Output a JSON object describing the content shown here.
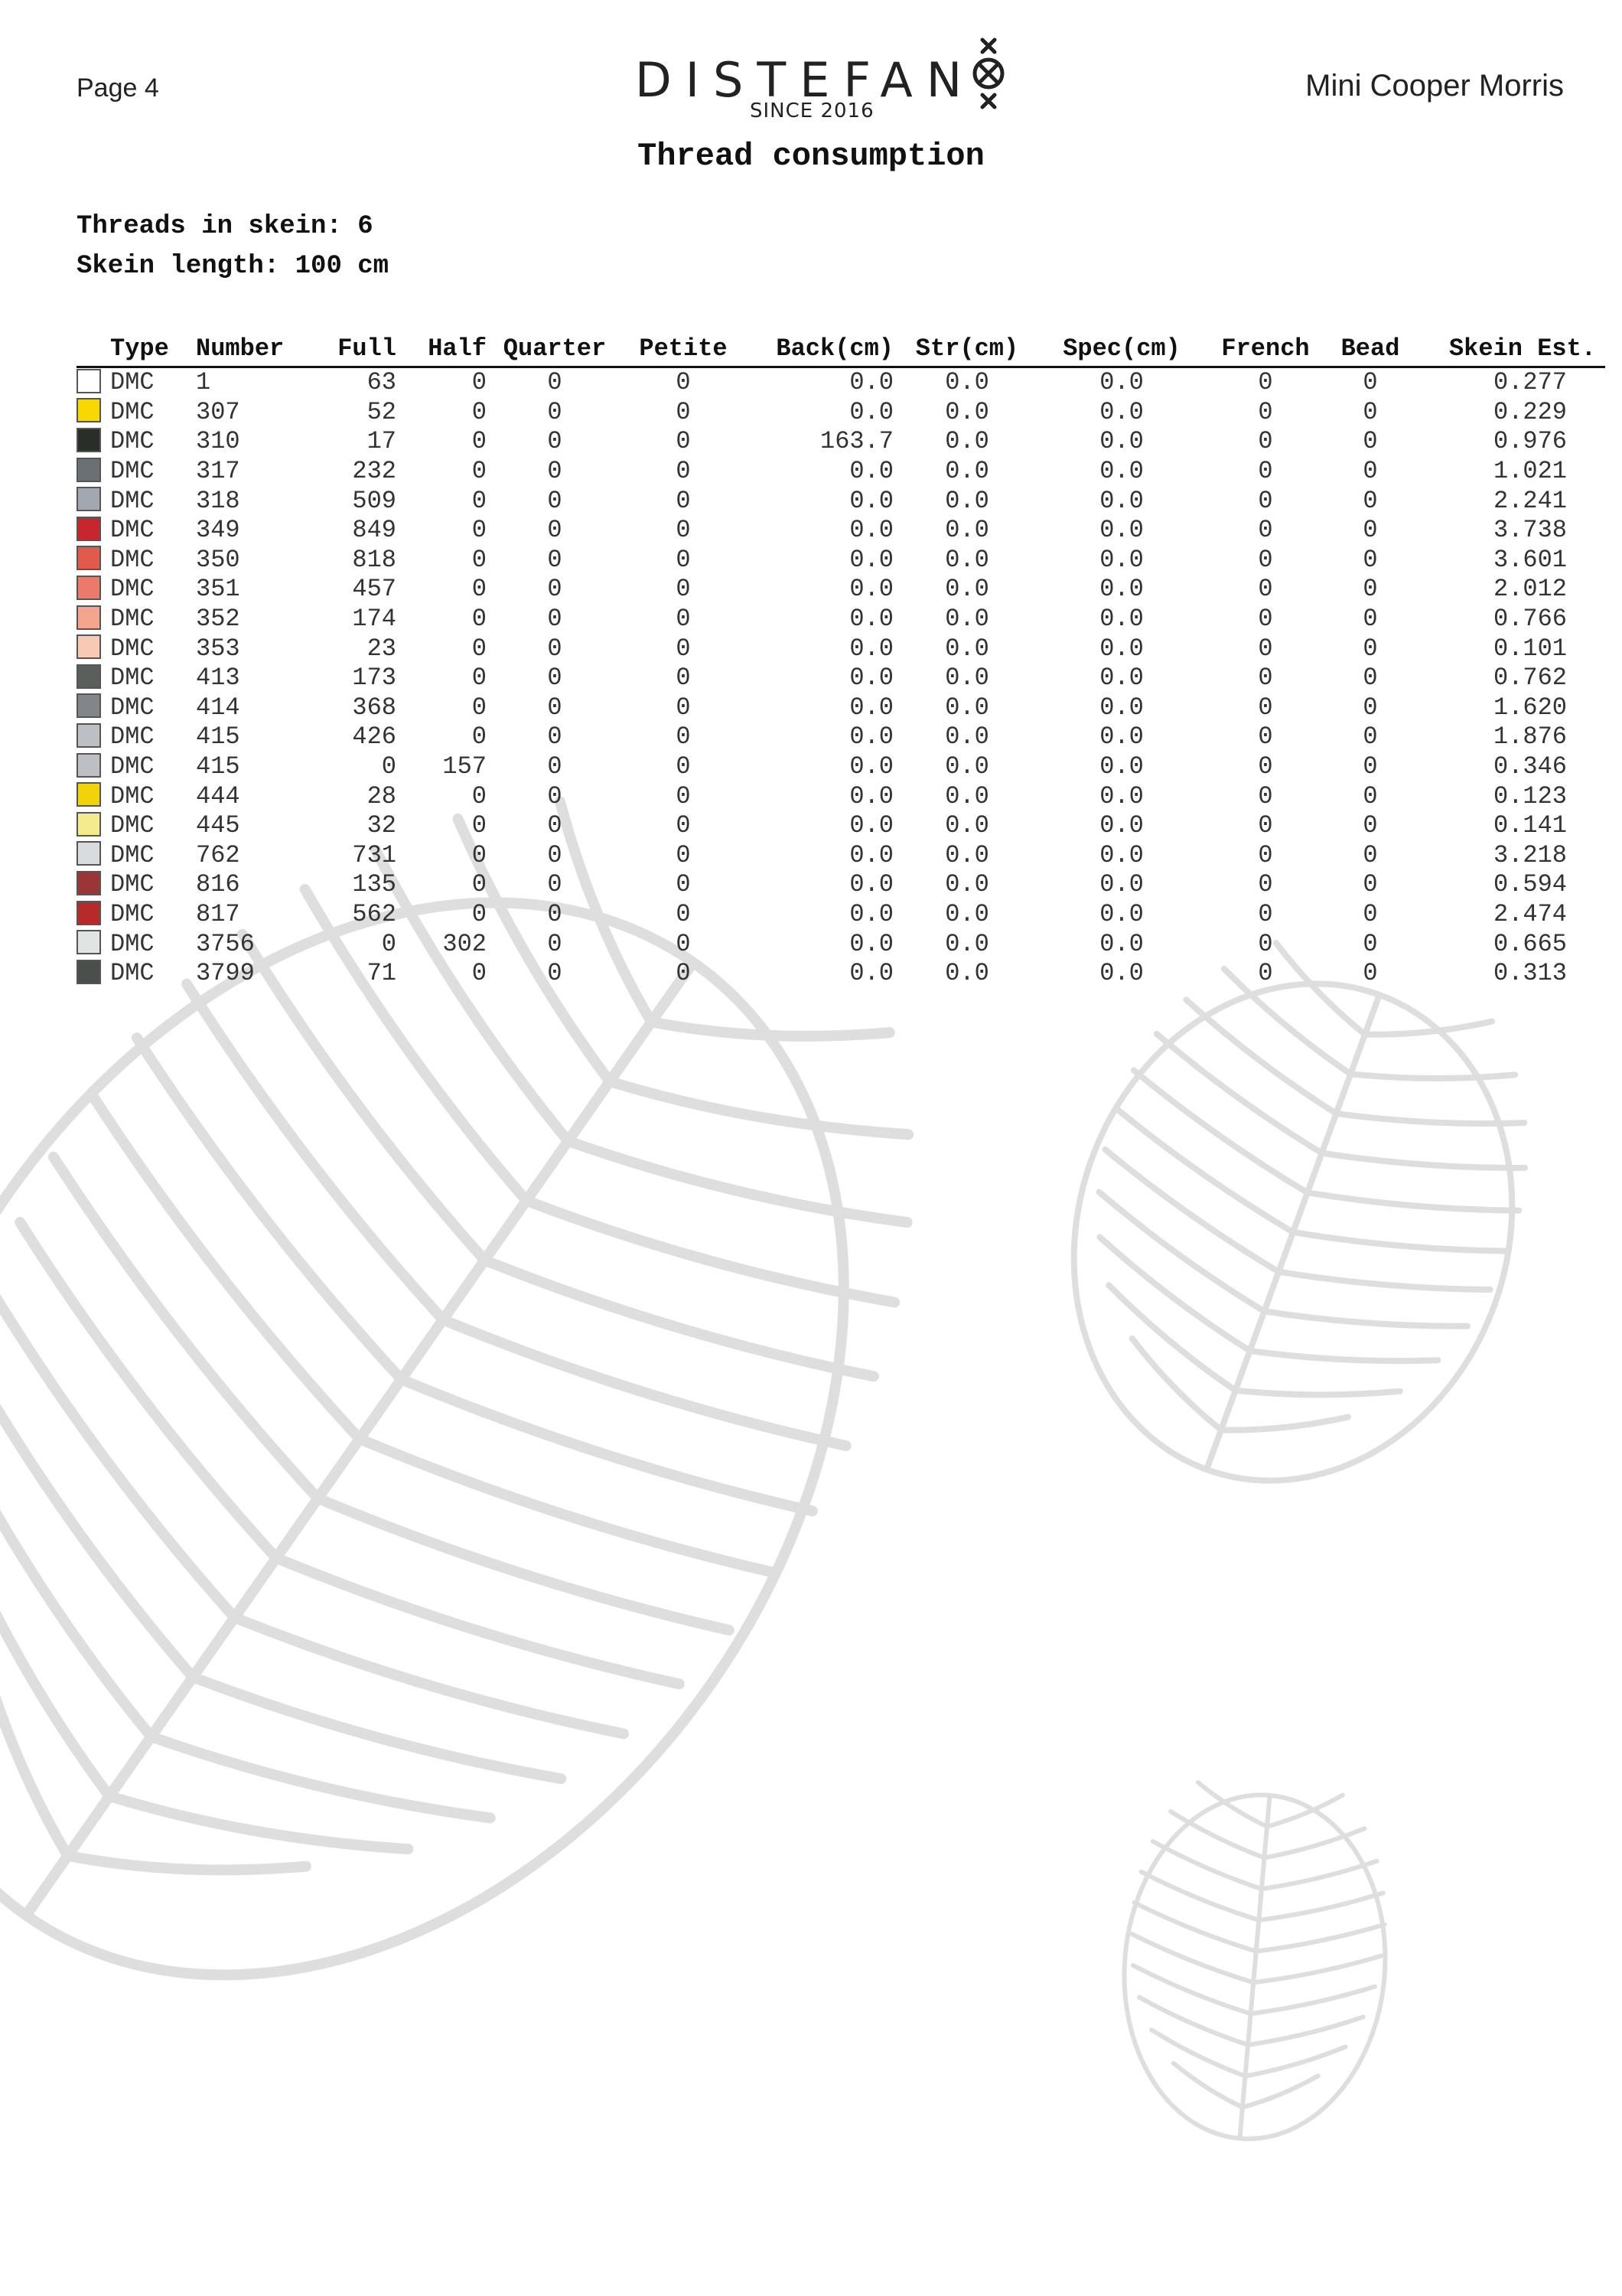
{
  "header": {
    "page_label": "Page 4",
    "brand": "DISTEFAN",
    "brand_since": "SINCE 2016",
    "pattern_name": "Mini Cooper Morris",
    "logo_icon": "circle-x-icon"
  },
  "title": "Thread consumption",
  "meta": {
    "threads_in_skein": "Threads in skein: 6",
    "skein_length": "Skein length: 100 cm"
  },
  "table": {
    "headers": {
      "type": "Type",
      "number": "Number",
      "full": "Full",
      "half": "Half",
      "quarter": "Quarter",
      "petite": "Petite",
      "back": "Back(cm)",
      "str": "Str(cm)",
      "spec": "Spec(cm)",
      "french": "French",
      "bead": "Bead",
      "skein": "Skein Est."
    },
    "rows": [
      {
        "color": "#ffffff",
        "type": "DMC",
        "number": "1",
        "full": "63",
        "half": "0",
        "quarter": "0",
        "petite": "0",
        "back": "0.0",
        "str": "0.0",
        "spec": "0.0",
        "french": "0",
        "bead": "0",
        "skein": "0.277"
      },
      {
        "color": "#f7d800",
        "type": "DMC",
        "number": "307",
        "full": "52",
        "half": "0",
        "quarter": "0",
        "petite": "0",
        "back": "0.0",
        "str": "0.0",
        "spec": "0.0",
        "french": "0",
        "bead": "0",
        "skein": "0.229"
      },
      {
        "color": "#2a2e28",
        "type": "DMC",
        "number": "310",
        "full": "17",
        "half": "0",
        "quarter": "0",
        "petite": "0",
        "back": "163.7",
        "str": "0.0",
        "spec": "0.0",
        "french": "0",
        "bead": "0",
        "skein": "0.976"
      },
      {
        "color": "#6b7075",
        "type": "DMC",
        "number": "317",
        "full": "232",
        "half": "0",
        "quarter": "0",
        "petite": "0",
        "back": "0.0",
        "str": "0.0",
        "spec": "0.0",
        "french": "0",
        "bead": "0",
        "skein": "1.021"
      },
      {
        "color": "#a3a7b0",
        "type": "DMC",
        "number": "318",
        "full": "509",
        "half": "0",
        "quarter": "0",
        "petite": "0",
        "back": "0.0",
        "str": "0.0",
        "spec": "0.0",
        "french": "0",
        "bead": "0",
        "skein": "2.241"
      },
      {
        "color": "#c8262e",
        "type": "DMC",
        "number": "349",
        "full": "849",
        "half": "0",
        "quarter": "0",
        "petite": "0",
        "back": "0.0",
        "str": "0.0",
        "spec": "0.0",
        "french": "0",
        "bead": "0",
        "skein": "3.738"
      },
      {
        "color": "#e25a4c",
        "type": "DMC",
        "number": "350",
        "full": "818",
        "half": "0",
        "quarter": "0",
        "petite": "0",
        "back": "0.0",
        "str": "0.0",
        "spec": "0.0",
        "french": "0",
        "bead": "0",
        "skein": "3.601"
      },
      {
        "color": "#ec7a6a",
        "type": "DMC",
        "number": "351",
        "full": "457",
        "half": "0",
        "quarter": "0",
        "petite": "0",
        "back": "0.0",
        "str": "0.0",
        "spec": "0.0",
        "french": "0",
        "bead": "0",
        "skein": "2.012"
      },
      {
        "color": "#f4a58e",
        "type": "DMC",
        "number": "352",
        "full": "174",
        "half": "0",
        "quarter": "0",
        "petite": "0",
        "back": "0.0",
        "str": "0.0",
        "spec": "0.0",
        "french": "0",
        "bead": "0",
        "skein": "0.766"
      },
      {
        "color": "#f8c9b4",
        "type": "DMC",
        "number": "353",
        "full": "23",
        "half": "0",
        "quarter": "0",
        "petite": "0",
        "back": "0.0",
        "str": "0.0",
        "spec": "0.0",
        "french": "0",
        "bead": "0",
        "skein": "0.101"
      },
      {
        "color": "#5b5f5c",
        "type": "DMC",
        "number": "413",
        "full": "173",
        "half": "0",
        "quarter": "0",
        "petite": "0",
        "back": "0.0",
        "str": "0.0",
        "spec": "0.0",
        "french": "0",
        "bead": "0",
        "skein": "0.762"
      },
      {
        "color": "#82868b",
        "type": "DMC",
        "number": "414",
        "full": "368",
        "half": "0",
        "quarter": "0",
        "petite": "0",
        "back": "0.0",
        "str": "0.0",
        "spec": "0.0",
        "french": "0",
        "bead": "0",
        "skein": "1.620"
      },
      {
        "color": "#bcc0c4",
        "type": "DMC",
        "number": "415",
        "full": "426",
        "half": "0",
        "quarter": "0",
        "petite": "0",
        "back": "0.0",
        "str": "0.0",
        "spec": "0.0",
        "french": "0",
        "bead": "0",
        "skein": "1.876"
      },
      {
        "color": "#bcc0c4",
        "type": "DMC",
        "number": "415",
        "full": "0",
        "half": "157",
        "quarter": "0",
        "petite": "0",
        "back": "0.0",
        "str": "0.0",
        "spec": "0.0",
        "french": "0",
        "bead": "0",
        "skein": "0.346"
      },
      {
        "color": "#f1d30a",
        "type": "DMC",
        "number": "444",
        "full": "28",
        "half": "0",
        "quarter": "0",
        "petite": "0",
        "back": "0.0",
        "str": "0.0",
        "spec": "0.0",
        "french": "0",
        "bead": "0",
        "skein": "0.123"
      },
      {
        "color": "#f4ec8c",
        "type": "DMC",
        "number": "445",
        "full": "32",
        "half": "0",
        "quarter": "0",
        "petite": "0",
        "back": "0.0",
        "str": "0.0",
        "spec": "0.0",
        "french": "0",
        "bead": "0",
        "skein": "0.141"
      },
      {
        "color": "#d8dcdf",
        "type": "DMC",
        "number": "762",
        "full": "731",
        "half": "0",
        "quarter": "0",
        "petite": "0",
        "back": "0.0",
        "str": "0.0",
        "spec": "0.0",
        "french": "0",
        "bead": "0",
        "skein": "3.218"
      },
      {
        "color": "#9a3538",
        "type": "DMC",
        "number": "816",
        "full": "135",
        "half": "0",
        "quarter": "0",
        "petite": "0",
        "back": "0.0",
        "str": "0.0",
        "spec": "0.0",
        "french": "0",
        "bead": "0",
        "skein": "0.594"
      },
      {
        "color": "#b82a2a",
        "type": "DMC",
        "number": "817",
        "full": "562",
        "half": "0",
        "quarter": "0",
        "petite": "0",
        "back": "0.0",
        "str": "0.0",
        "spec": "0.0",
        "french": "0",
        "bead": "0",
        "skein": "2.474"
      },
      {
        "color": "#dfe6e2",
        "type": "DMC",
        "number": "3756",
        "full": "0",
        "half": "302",
        "quarter": "0",
        "petite": "0",
        "back": "0.0",
        "str": "0.0",
        "spec": "0.0",
        "french": "0",
        "bead": "0",
        "skein": "0.665"
      },
      {
        "color": "#4a4f4b",
        "type": "DMC",
        "number": "3799",
        "full": "71",
        "half": "0",
        "quarter": "0",
        "petite": "0",
        "back": "0.0",
        "str": "0.0",
        "spec": "0.0",
        "french": "0",
        "bead": "0",
        "skein": "0.313"
      }
    ]
  },
  "decor": {
    "leaf_color": "#dedede",
    "leaf_icon": "monstera-leaf-icon"
  }
}
